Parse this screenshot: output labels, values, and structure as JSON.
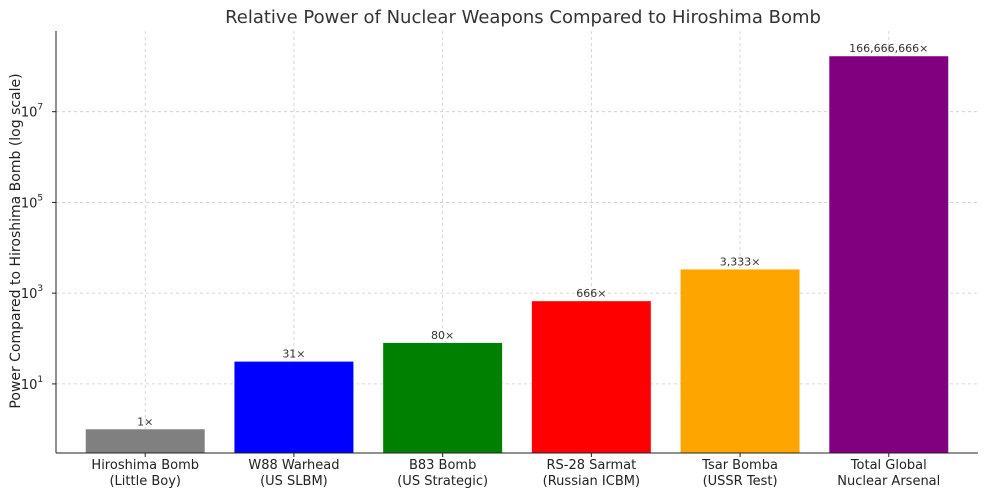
{
  "chart_data": {
    "type": "bar",
    "title": "Relative Power of Nuclear Weapons Compared to Hiroshima Bomb",
    "ylabel": "Power Compared to Hiroshima Bomb (log scale)",
    "yscale": "log",
    "ylim": [
      0.3,
      600000000
    ],
    "grid": true,
    "yticks": [
      {
        "value": 10,
        "base": "10",
        "exp": "1"
      },
      {
        "value": 1000,
        "base": "10",
        "exp": "3"
      },
      {
        "value": 100000,
        "base": "10",
        "exp": "5"
      },
      {
        "value": 10000000,
        "base": "10",
        "exp": "7"
      }
    ],
    "categories": [
      [
        "Hiroshima Bomb",
        "(Little Boy)"
      ],
      [
        "W88 Warhead",
        "(US SLBM)"
      ],
      [
        "B83 Bomb",
        "(US Strategic)"
      ],
      [
        "RS-28 Sarmat",
        "(Russian ICBM)"
      ],
      [
        "Tsar Bomba",
        "(USSR Test)"
      ],
      [
        "Total Global",
        "Nuclear Arsenal"
      ]
    ],
    "values": [
      1,
      31,
      80,
      666,
      3333,
      166666666
    ],
    "labels": [
      "1×",
      "31×",
      "80×",
      "666×",
      "3,333×",
      "166,666,666×"
    ],
    "colors": [
      "#808080",
      "#0000ff",
      "#008000",
      "#ff0000",
      "#ffa500",
      "#800080"
    ]
  }
}
